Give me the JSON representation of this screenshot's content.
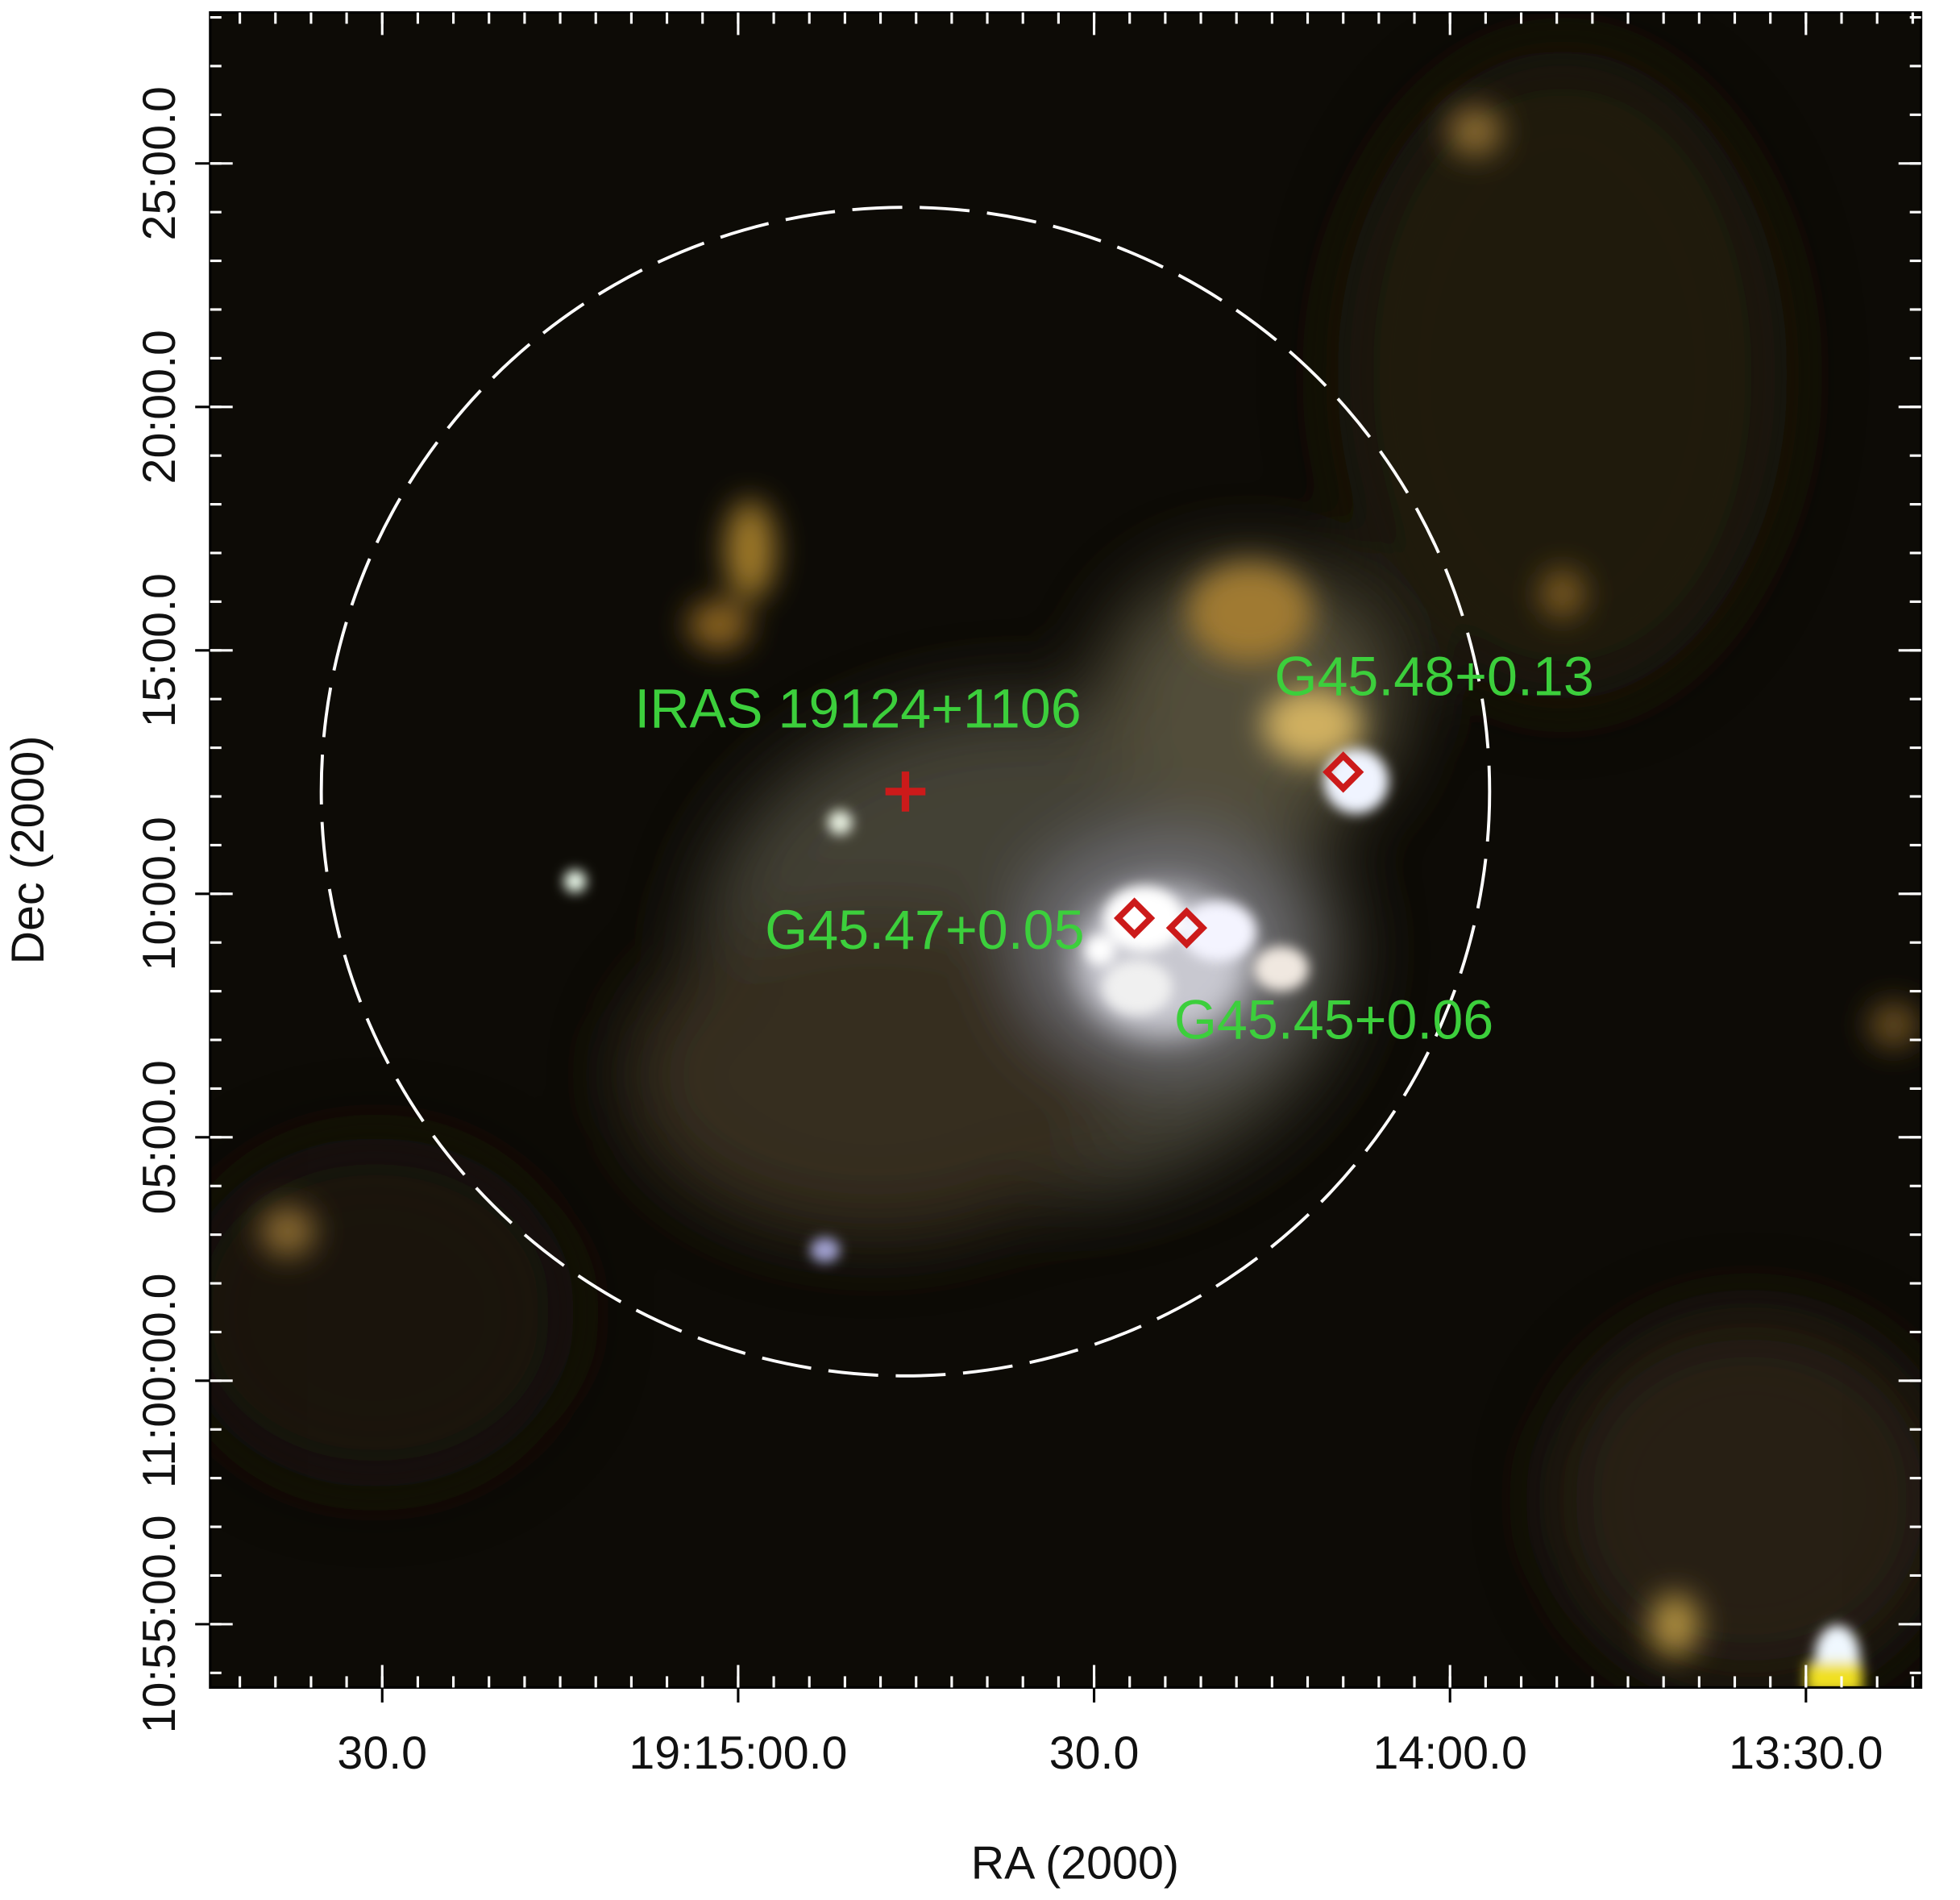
{
  "chart_data": {
    "type": "sky-image",
    "xlabel": "RA (2000)",
    "ylabel": "Dec (2000)",
    "xlim": [
      69344.5,
      69200.3
    ],
    "xticks": [
      {
        "value": 69330,
        "label": "30.0"
      },
      {
        "value": 69300,
        "label": "19:15:00.0"
      },
      {
        "value": 69270,
        "label": "30.0"
      },
      {
        "value": 69240,
        "label": "14:00.0"
      },
      {
        "value": 69210,
        "label": "13:30.0"
      }
    ],
    "ylim": [
      653.7,
      688.1
    ],
    "yticks": [
      {
        "value": 655,
        "label": "10:55:00.0"
      },
      {
        "value": 660,
        "label": "11:00:00.0"
      },
      {
        "value": 665,
        "label": "05:00.0"
      },
      {
        "value": 670,
        "label": "10:00.0"
      },
      {
        "value": 675,
        "label": "15:00.0"
      },
      {
        "value": 680,
        "label": "20:00.0"
      },
      {
        "value": 685,
        "label": "25:00.0"
      }
    ],
    "circle": {
      "x": 69285.9,
      "y": 672.1,
      "radius": 12,
      "color": "#ffffff"
    },
    "marker_color": "#cc1a1a",
    "label_color": "#3ccf3c",
    "annotations": [
      {
        "text": "IRAS 19124+1106",
        "x": 69285.9,
        "y": 672.1,
        "marker": "cross"
      },
      {
        "text": "G45.48+0.13",
        "x": 69249.0,
        "y": 672.5,
        "marker": "diamond"
      },
      {
        "text": "G45.47+0.05",
        "x": 69266.6,
        "y": 669.5,
        "marker": "diamond"
      },
      {
        "text": "G45.45+0.06",
        "x": 69262.2,
        "y": 669.3,
        "marker": "diamond"
      }
    ]
  }
}
